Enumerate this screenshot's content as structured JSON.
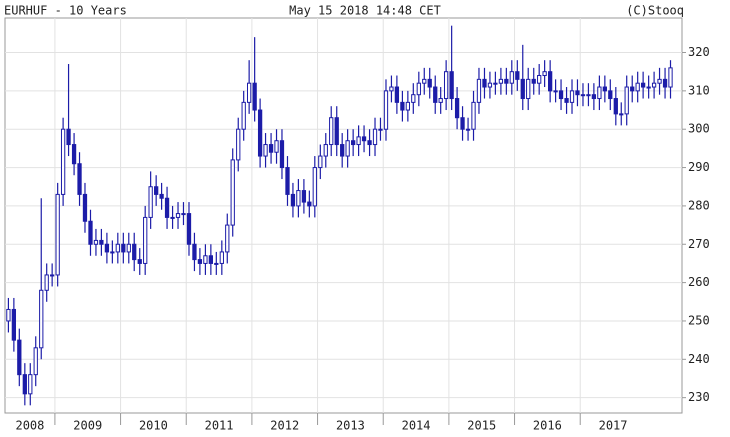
{
  "chart_data": {
    "type": "candlestick",
    "title": "EURHUF - 10 Years",
    "subtitle": "May 15 2018 14:48 CET",
    "source": "(C)Stooq",
    "color": "#1c1ca8",
    "grid": true,
    "xlim": [
      2008.24,
      2018.55
    ],
    "xticks": [
      2008,
      2009,
      2010,
      2011,
      2012,
      2013,
      2014,
      2015,
      2016,
      2017
    ],
    "ylim": [
      226,
      329
    ],
    "yticks": [
      230,
      240,
      250,
      260,
      270,
      280,
      290,
      300,
      310,
      320
    ],
    "x": [
      2008.292,
      2008.375,
      2008.458,
      2008.542,
      2008.625,
      2008.708,
      2008.792,
      2008.875,
      2008.958,
      2009.042,
      2009.125,
      2009.208,
      2009.292,
      2009.375,
      2009.458,
      2009.542,
      2009.625,
      2009.708,
      2009.792,
      2009.875,
      2009.958,
      2010.042,
      2010.125,
      2010.208,
      2010.292,
      2010.375,
      2010.458,
      2010.542,
      2010.625,
      2010.708,
      2010.792,
      2010.875,
      2010.958,
      2011.042,
      2011.125,
      2011.208,
      2011.292,
      2011.375,
      2011.458,
      2011.542,
      2011.625,
      2011.708,
      2011.792,
      2011.875,
      2011.958,
      2012.042,
      2012.125,
      2012.208,
      2012.292,
      2012.375,
      2012.458,
      2012.542,
      2012.625,
      2012.708,
      2012.792,
      2012.875,
      2012.958,
      2013.042,
      2013.125,
      2013.208,
      2013.292,
      2013.375,
      2013.458,
      2013.542,
      2013.625,
      2013.708,
      2013.792,
      2013.875,
      2013.958,
      2014.042,
      2014.125,
      2014.208,
      2014.292,
      2014.375,
      2014.458,
      2014.542,
      2014.625,
      2014.708,
      2014.792,
      2014.875,
      2014.958,
      2015.042,
      2015.125,
      2015.208,
      2015.292,
      2015.375,
      2015.458,
      2015.542,
      2015.625,
      2015.708,
      2015.792,
      2015.875,
      2015.958,
      2016.042,
      2016.125,
      2016.208,
      2016.292,
      2016.375,
      2016.458,
      2016.542,
      2016.625,
      2016.708,
      2016.792,
      2016.875,
      2016.958,
      2017.042,
      2017.125,
      2017.208,
      2017.292,
      2017.375,
      2017.458,
      2017.542,
      2017.625,
      2017.708,
      2017.792,
      2017.875,
      2017.958,
      2018.042,
      2018.125,
      2018.208,
      2018.292,
      2018.375
    ],
    "open": [
      250,
      253,
      245,
      236,
      231,
      236,
      243,
      258,
      262,
      262,
      283,
      300,
      296,
      291,
      283,
      276,
      270,
      271,
      270,
      268,
      268,
      270,
      268,
      270,
      266,
      265,
      277,
      285,
      283,
      282,
      277,
      277,
      278,
      278,
      270,
      266,
      265,
      267,
      265,
      265,
      268,
      275,
      292,
      300,
      307,
      312,
      305,
      293,
      296,
      294,
      297,
      290,
      283,
      280,
      284,
      281,
      280,
      290,
      293,
      296,
      303,
      296,
      293,
      297,
      296,
      298,
      297,
      296,
      300,
      300,
      310,
      311,
      307,
      305,
      307,
      309,
      312,
      313,
      311,
      307,
      308,
      315,
      308,
      303,
      300,
      300,
      307,
      313,
      311,
      312,
      312,
      313,
      312,
      315,
      313,
      308,
      313,
      312,
      314,
      315,
      310,
      310,
      308,
      307,
      310,
      309,
      309,
      309,
      308,
      311,
      310,
      308,
      304,
      304,
      311,
      310,
      312,
      311,
      311,
      312,
      313,
      311
    ],
    "high": [
      256,
      256,
      248,
      239,
      239,
      246,
      282,
      265,
      265,
      286,
      303,
      317,
      299,
      294,
      286,
      279,
      274,
      274,
      273,
      271,
      273,
      273,
      273,
      273,
      269,
      280,
      289,
      288,
      286,
      285,
      280,
      281,
      281,
      281,
      273,
      269,
      270,
      270,
      268,
      271,
      278,
      295,
      303,
      310,
      318,
      324,
      308,
      299,
      299,
      300,
      300,
      293,
      286,
      287,
      287,
      284,
      293,
      296,
      299,
      306,
      306,
      299,
      300,
      300,
      301,
      301,
      300,
      303,
      303,
      313,
      314,
      314,
      310,
      310,
      312,
      315,
      316,
      316,
      314,
      311,
      318,
      327,
      311,
      306,
      303,
      310,
      316,
      316,
      315,
      315,
      316,
      316,
      318,
      318,
      322,
      316,
      316,
      317,
      318,
      318,
      313,
      313,
      311,
      313,
      313,
      312,
      312,
      312,
      314,
      314,
      313,
      311,
      307,
      314,
      314,
      315,
      315,
      314,
      315,
      316,
      316,
      318
    ],
    "low": [
      247,
      242,
      233,
      228,
      228,
      233,
      240,
      255,
      259,
      259,
      280,
      293,
      288,
      280,
      273,
      267,
      267,
      267,
      265,
      265,
      265,
      265,
      265,
      263,
      262,
      262,
      274,
      280,
      279,
      274,
      274,
      274,
      275,
      267,
      263,
      262,
      262,
      262,
      262,
      262,
      265,
      272,
      289,
      297,
      304,
      302,
      290,
      290,
      291,
      291,
      287,
      280,
      277,
      277,
      278,
      277,
      277,
      287,
      290,
      293,
      293,
      290,
      290,
      293,
      293,
      294,
      293,
      293,
      297,
      297,
      307,
      304,
      302,
      302,
      304,
      306,
      309,
      308,
      304,
      304,
      305,
      305,
      300,
      297,
      297,
      297,
      304,
      308,
      308,
      309,
      309,
      309,
      309,
      310,
      305,
      305,
      309,
      309,
      311,
      307,
      307,
      305,
      304,
      304,
      306,
      306,
      306,
      305,
      305,
      307,
      305,
      301,
      301,
      301,
      307,
      307,
      308,
      308,
      308,
      309,
      308,
      308
    ],
    "close": [
      253,
      245,
      236,
      231,
      236,
      243,
      258,
      262,
      262,
      283,
      300,
      296,
      291,
      283,
      276,
      270,
      271,
      270,
      268,
      268,
      270,
      268,
      270,
      266,
      265,
      277,
      285,
      283,
      282,
      277,
      277,
      278,
      278,
      270,
      266,
      265,
      267,
      265,
      265,
      268,
      275,
      292,
      300,
      307,
      312,
      305,
      293,
      296,
      294,
      297,
      290,
      283,
      280,
      284,
      281,
      280,
      290,
      293,
      296,
      303,
      296,
      293,
      297,
      296,
      298,
      297,
      296,
      300,
      300,
      310,
      311,
      307,
      305,
      307,
      309,
      312,
      313,
      311,
      307,
      308,
      315,
      308,
      303,
      300,
      300,
      307,
      313,
      311,
      312,
      312,
      313,
      312,
      315,
      313,
      308,
      313,
      312,
      314,
      315,
      310,
      310,
      308,
      307,
      310,
      309,
      309,
      309,
      308,
      311,
      310,
      308,
      304,
      304,
      311,
      310,
      312,
      311,
      311,
      312,
      313,
      311,
      316
    ]
  }
}
